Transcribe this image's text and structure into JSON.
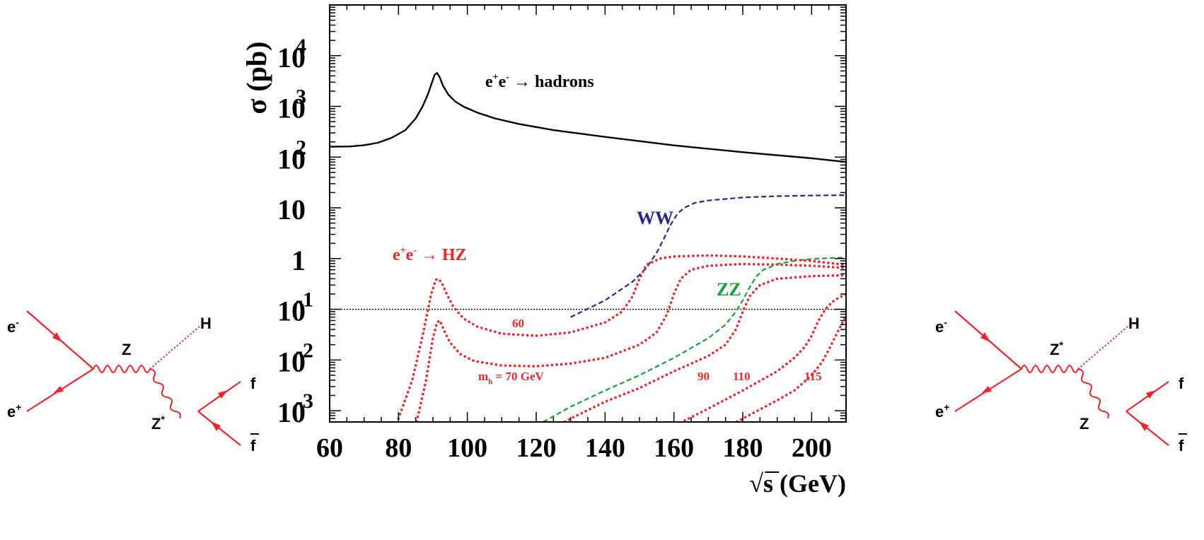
{
  "chart_data": {
    "type": "line",
    "x_scale": "linear",
    "y_scale": "log",
    "xlim": [
      60,
      210
    ],
    "ylim": [
      0.0006,
      100000
    ],
    "x_ticks": [
      60,
      80,
      100,
      120,
      140,
      160,
      180,
      200
    ],
    "y_ticks": [
      {
        "value": 10000,
        "base": "10",
        "exp": "4"
      },
      {
        "value": 1000,
        "base": "10",
        "exp": "3"
      },
      {
        "value": 100,
        "base": "10",
        "exp": "2"
      },
      {
        "value": 10,
        "base": "10",
        "exp": ""
      },
      {
        "value": 1,
        "base": "1",
        "exp": ""
      },
      {
        "value": 0.1,
        "base": "10",
        "exp": "-1"
      },
      {
        "value": 0.01,
        "base": "10",
        "exp": "-2"
      },
      {
        "value": 0.001,
        "base": "10",
        "exp": "-3"
      }
    ],
    "xlabel": "√s (GeV)",
    "ylabel": "σ (pb)",
    "reference_line": {
      "y": 0.1,
      "style": "dotted"
    },
    "colors": {
      "hadrons": "#000000",
      "ww": "#1f2a8c",
      "zz": "#1a9e3c",
      "hz": "#e8262c",
      "axis": "#000000"
    },
    "series": [
      {
        "key": "hadrons",
        "style": "solid",
        "x": [
          60,
          66,
          70,
          74,
          78,
          82,
          85,
          87,
          88.5,
          89.5,
          90.5,
          91.2,
          92,
          93,
          94.5,
          96.5,
          99,
          103,
          108,
          115,
          125,
          140,
          160,
          180,
          200,
          210
        ],
        "y": [
          160,
          162,
          172,
          192,
          240,
          340,
          580,
          1000,
          1700,
          2700,
          4200,
          4600,
          3700,
          2500,
          1700,
          1250,
          980,
          750,
          580,
          450,
          340,
          250,
          170,
          125,
          95,
          80
        ]
      },
      {
        "key": "ww",
        "style": "dashed",
        "x": [
          130,
          140,
          148,
          152,
          155,
          157,
          159,
          161,
          163,
          166,
          170,
          180,
          190,
          200,
          210
        ],
        "y": [
          0.07,
          0.15,
          0.35,
          0.65,
          1.3,
          2.4,
          4.6,
          7.6,
          10,
          12.5,
          14,
          16,
          17,
          17.5,
          17.8
        ]
      },
      {
        "key": "zz",
        "style": "dashed",
        "x": [
          122,
          130,
          140,
          150,
          160,
          170,
          175,
          178,
          180,
          182,
          184,
          186,
          190,
          195,
          200,
          205,
          210
        ],
        "y": [
          0.0006,
          0.0012,
          0.0025,
          0.005,
          0.011,
          0.027,
          0.05,
          0.09,
          0.15,
          0.27,
          0.45,
          0.6,
          0.78,
          0.9,
          0.98,
          1.02,
          1.05
        ]
      },
      {
        "key": "hz60",
        "style": "dotted",
        "x": [
          80,
          84,
          87,
          89.5,
          90.8,
          91.5,
          92.5,
          94,
          96,
          99,
          103,
          110,
          120,
          130,
          140,
          145,
          148,
          150,
          152,
          156,
          160,
          170,
          180,
          190,
          200,
          210
        ],
        "y": [
          0.0007,
          0.004,
          0.03,
          0.2,
          0.38,
          0.4,
          0.34,
          0.2,
          0.11,
          0.065,
          0.045,
          0.033,
          0.03,
          0.035,
          0.055,
          0.09,
          0.18,
          0.4,
          0.75,
          1.0,
          1.1,
          1.15,
          1.1,
          1.0,
          0.9,
          0.75
        ]
      },
      {
        "key": "hz70",
        "style": "dotted",
        "x": [
          85,
          88,
          90,
          91.2,
          92,
          93.5,
          95,
          98,
          102,
          110,
          120,
          130,
          140,
          150,
          155,
          158,
          160,
          162,
          165,
          170,
          180,
          190,
          200,
          210
        ],
        "y": [
          0.0005,
          0.004,
          0.027,
          0.055,
          0.06,
          0.035,
          0.022,
          0.013,
          0.0095,
          0.0078,
          0.0075,
          0.0085,
          0.011,
          0.02,
          0.035,
          0.08,
          0.2,
          0.4,
          0.6,
          0.72,
          0.78,
          0.76,
          0.72,
          0.65
        ]
      },
      {
        "key": "hz90",
        "style": "dotted",
        "x": [
          120,
          130,
          140,
          150,
          160,
          170,
          175,
          178,
          180,
          182,
          185,
          190,
          200,
          210
        ],
        "y": [
          0.0003,
          0.0007,
          0.0015,
          0.0028,
          0.006,
          0.012,
          0.02,
          0.04,
          0.09,
          0.18,
          0.3,
          0.4,
          0.45,
          0.47
        ]
      },
      {
        "key": "hz110",
        "style": "dotted",
        "x": [
          155,
          160,
          170,
          180,
          190,
          195,
          198,
          200,
          202,
          204,
          206,
          208,
          210
        ],
        "y": [
          0.0003,
          0.0005,
          0.0011,
          0.0025,
          0.006,
          0.011,
          0.018,
          0.03,
          0.06,
          0.1,
          0.14,
          0.17,
          0.2
        ]
      },
      {
        "key": "hz115",
        "style": "dotted",
        "x": [
          170,
          180,
          190,
          195,
          200,
          203,
          205,
          207,
          209,
          210
        ],
        "y": [
          0.0003,
          0.0007,
          0.0016,
          0.0025,
          0.005,
          0.009,
          0.016,
          0.03,
          0.055,
          0.075
        ]
      }
    ],
    "annotations": {
      "hadrons": {
        "main": "e",
        "sup1": "+",
        "mid": "e",
        "sup2": "-",
        "rest": " → hadrons"
      },
      "hz": {
        "main": "e",
        "sup1": "+",
        "mid": "e",
        "sup2": "-",
        "rest": " → HZ"
      },
      "ww": "WW",
      "zz": "ZZ",
      "mh70": {
        "main": "m",
        "sub": "h",
        "rest": " = 70 GeV"
      },
      "m60": "60",
      "m90": "90",
      "m110": "110",
      "m115": "115"
    }
  },
  "diagrams": {
    "left": {
      "e_minus": "e",
      "e_minus_sup": "-",
      "e_plus": "e",
      "e_plus_sup": "+",
      "z": "Z",
      "z_sup": "",
      "higgs": "H",
      "z2": "Z",
      "z2_sup": "*",
      "f": "f",
      "fbar": "f"
    },
    "right": {
      "e_minus": "e",
      "e_minus_sup": "-",
      "e_plus": "e",
      "e_plus_sup": "+",
      "z": "Z",
      "z_sup": "*",
      "higgs": "H",
      "z2": "Z",
      "z2_sup": "",
      "f": "f",
      "fbar": "f"
    }
  }
}
